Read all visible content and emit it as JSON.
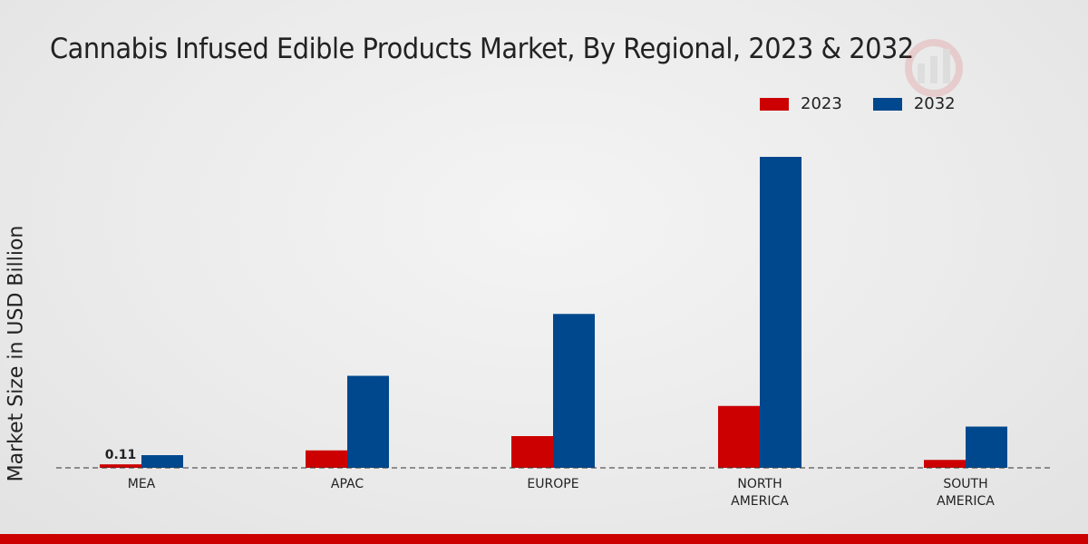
{
  "chart_data": {
    "type": "bar",
    "title": "Cannabis Infused Edible Products Market, By Regional, 2023 & 2032",
    "ylabel": "Market Size in USD Billion",
    "xlabel": "",
    "categories": [
      [
        "MEA"
      ],
      [
        "APAC"
      ],
      [
        "EUROPE"
      ],
      [
        "NORTH",
        "AMERICA"
      ],
      [
        "SOUTH",
        "AMERICA"
      ]
    ],
    "series": [
      {
        "name": "2023",
        "color": "#cc0000",
        "values": [
          0.11,
          0.55,
          1.0,
          1.95,
          0.25
        ]
      },
      {
        "name": "2032",
        "color": "#00488d",
        "values": [
          0.4,
          2.9,
          4.85,
          9.8,
          1.3
        ]
      }
    ],
    "ylim": [
      0,
      12
    ],
    "grid": false,
    "legend_position": "top-right",
    "annotations": [
      {
        "category_index": 0,
        "series_index": 0,
        "text": "0.11"
      }
    ]
  }
}
